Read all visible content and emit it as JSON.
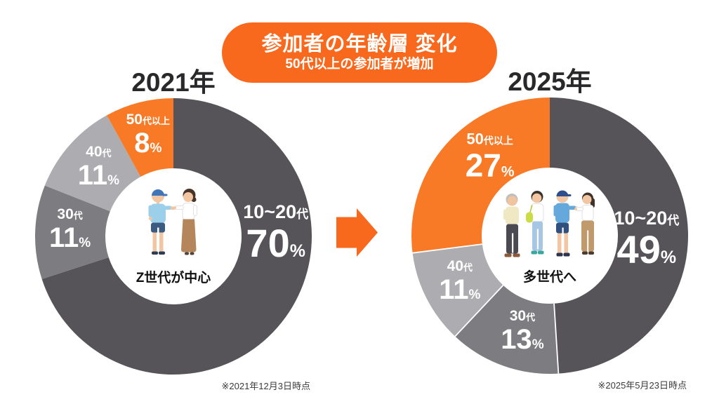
{
  "banner": {
    "title": "参加者の年齢層 変化",
    "subtitle": "50代以上の参加者が増加"
  },
  "arrow_icon": "right-arrow",
  "colors": {
    "banner_orange": "#f8691e",
    "segment_orange": "#f97a26",
    "dark_gray": "#565459",
    "medium_gray": "#7d7c80",
    "light_gray": "#adacb0"
  },
  "chart_data": [
    {
      "type": "pie",
      "title": "2021年",
      "center_label": "Z世代が中心",
      "footnote": "※2021年12月3日時点",
      "unit": "%",
      "start_angle": 0,
      "direction": "clockwise",
      "separators": false,
      "segments": [
        {
          "label": "10~20代",
          "value": 70,
          "color_key": "dark_gray",
          "label_angle": 88,
          "label_radius": 0.74
        },
        {
          "label": "30代",
          "value": 11,
          "color_key": "medium_gray",
          "label_angle": 274,
          "label_radius": 0.75
        },
        {
          "label": "40代",
          "value": 11,
          "color_key": "light_gray",
          "label_angle": 313,
          "label_radius": 0.74
        },
        {
          "label": "50代以上",
          "value": 8,
          "color_key": "segment_orange",
          "label_angle": 346,
          "label_radius": 0.76
        }
      ]
    },
    {
      "type": "pie",
      "title": "2025年",
      "center_label": "多世代へ",
      "footnote": "※2025年5月23日時点",
      "unit": "%",
      "start_angle": 0,
      "direction": "clockwise",
      "separators": true,
      "segments": [
        {
          "label": "10~20代",
          "value": 49,
          "color_key": "dark_gray",
          "label_angle": 92,
          "label_radius": 0.7
        },
        {
          "label": "30代",
          "value": 13,
          "color_key": "medium_gray",
          "label_angle": 196,
          "label_radius": 0.72
        },
        {
          "label": "40代",
          "value": 11,
          "color_key": "light_gray",
          "label_angle": 243,
          "label_radius": 0.73
        },
        {
          "label": "50代以上",
          "value": 27,
          "color_key": "segment_orange",
          "label_angle": 323,
          "label_radius": 0.72
        }
      ]
    }
  ]
}
